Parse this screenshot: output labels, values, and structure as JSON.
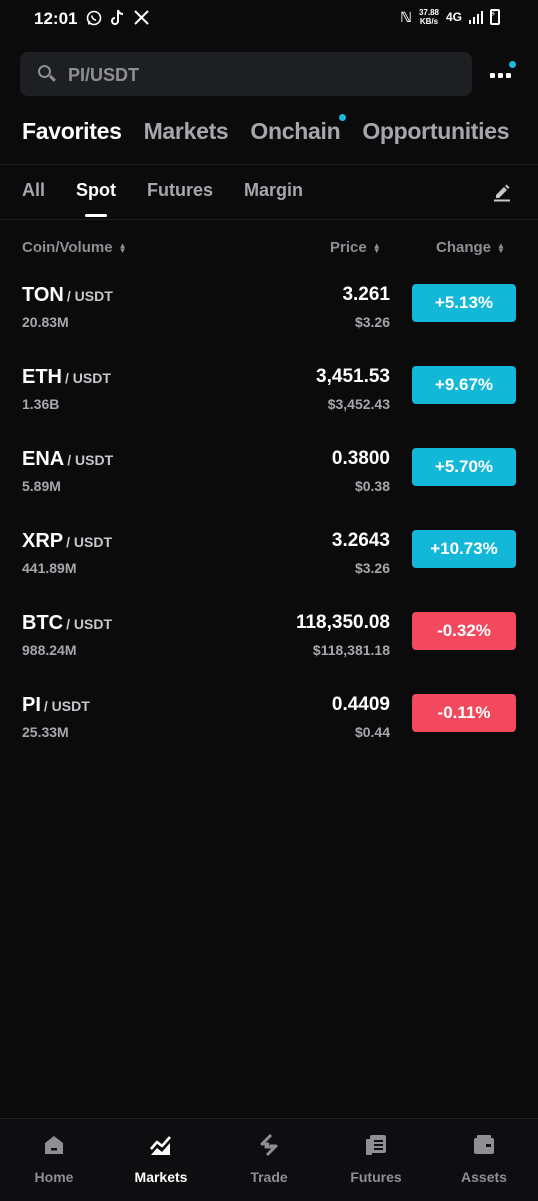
{
  "status_bar": {
    "time": "12:01",
    "network_speed_value": "37.88",
    "network_speed_unit": "KB/s",
    "network_type": "4G",
    "apps": [
      "whatsapp-icon",
      "tiktok-icon",
      "x-icon"
    ]
  },
  "search": {
    "placeholder": "PI/USDT"
  },
  "main_tabs": [
    {
      "label": "Favorites",
      "active": true
    },
    {
      "label": "Markets",
      "active": false
    },
    {
      "label": "Onchain",
      "active": false,
      "badge": true
    },
    {
      "label": "Opportunities",
      "active": false
    }
  ],
  "sub_tabs": [
    {
      "label": "All",
      "active": false
    },
    {
      "label": "Spot",
      "active": true
    },
    {
      "label": "Futures",
      "active": false
    },
    {
      "label": "Margin",
      "active": false
    }
  ],
  "columns": {
    "coin": "Coin/Volume",
    "price": "Price",
    "change": "Change"
  },
  "rows": [
    {
      "base": "TON",
      "quote": "/ USDT",
      "volume": "20.83M",
      "price": "3.261",
      "price_usd": "$3.26",
      "change": "+5.13%",
      "positive": true
    },
    {
      "base": "ETH",
      "quote": "/ USDT",
      "volume": "1.36B",
      "price": "3,451.53",
      "price_usd": "$3,452.43",
      "change": "+9.67%",
      "positive": true
    },
    {
      "base": "ENA",
      "quote": "/ USDT",
      "volume": "5.89M",
      "price": "0.3800",
      "price_usd": "$0.38",
      "change": "+5.70%",
      "positive": true
    },
    {
      "base": "XRP",
      "quote": "/ USDT",
      "volume": "441.89M",
      "price": "3.2643",
      "price_usd": "$3.26",
      "change": "+10.73%",
      "positive": true
    },
    {
      "base": "BTC",
      "quote": "/ USDT",
      "volume": "988.24M",
      "price": "118,350.08",
      "price_usd": "$118,381.18",
      "change": "-0.32%",
      "positive": false
    },
    {
      "base": "PI",
      "quote": "/ USDT",
      "volume": "25.33M",
      "price": "0.4409",
      "price_usd": "$0.44",
      "change": "-0.11%",
      "positive": false
    }
  ],
  "colors": {
    "positive": "#13b8d9",
    "negative": "#f2495e",
    "accent": "#1fb8e0"
  },
  "bottom_nav": [
    {
      "label": "Home",
      "icon": "home-icon",
      "active": false
    },
    {
      "label": "Markets",
      "icon": "markets-icon",
      "active": true
    },
    {
      "label": "Trade",
      "icon": "trade-icon",
      "active": false
    },
    {
      "label": "Futures",
      "icon": "futures-icon",
      "active": false
    },
    {
      "label": "Assets",
      "icon": "assets-icon",
      "active": false
    }
  ]
}
